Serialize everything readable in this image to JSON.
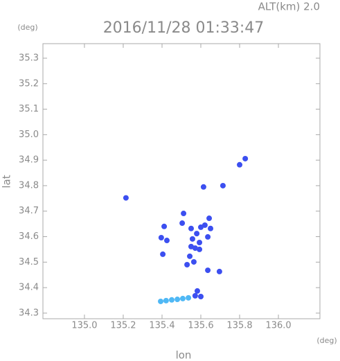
{
  "chart_data": {
    "type": "scatter",
    "title": "2016/11/28 01:33:47",
    "subtitle": "ALT(km) 2.0",
    "y_unit": "(deg)",
    "x_unit": "(deg)",
    "xlabel": "lon",
    "ylabel": "lat",
    "xlim": [
      134.786,
      136.214
    ],
    "ylim": [
      34.278,
      35.357
    ],
    "xticks": [
      {
        "value": 135,
        "label": "135.0"
      },
      135.2,
      135.4,
      135.6,
      135.8,
      {
        "value": 136,
        "label": "136.0"
      }
    ],
    "yticks": [
      34.3,
      34.4,
      34.5,
      34.6,
      34.7,
      34.8,
      34.9,
      {
        "value": 35,
        "label": "35.0"
      },
      35.1,
      35.2,
      35.3
    ],
    "series": [
      {
        "color": "#3c4ff0",
        "x": [
          135.214,
          135.8,
          135.829,
          135.614,
          135.714,
          135.411,
          135.396,
          135.425,
          135.404,
          135.504,
          135.511,
          135.55,
          135.557,
          135.55,
          135.571,
          135.543,
          135.564,
          135.529,
          135.593,
          135.593,
          135.579,
          135.6,
          135.643,
          135.621,
          135.65,
          135.636,
          135.636,
          135.696,
          135.582,
          135.571,
          135.6
        ],
        "y": [
          34.752,
          34.882,
          34.906,
          34.795,
          34.8,
          34.64,
          34.596,
          34.585,
          34.531,
          34.653,
          34.691,
          34.632,
          34.591,
          34.561,
          34.555,
          34.523,
          34.501,
          34.49,
          34.577,
          34.55,
          34.612,
          34.637,
          34.672,
          34.645,
          34.632,
          34.599,
          34.468,
          34.463,
          34.387,
          34.368,
          34.365
        ]
      },
      {
        "color": "#4fb8f5",
        "x": [
          135.393,
          135.421,
          135.45,
          135.479,
          135.507,
          135.536
        ],
        "y": [
          34.346,
          34.349,
          34.352,
          34.354,
          34.357,
          34.36
        ]
      }
    ]
  }
}
